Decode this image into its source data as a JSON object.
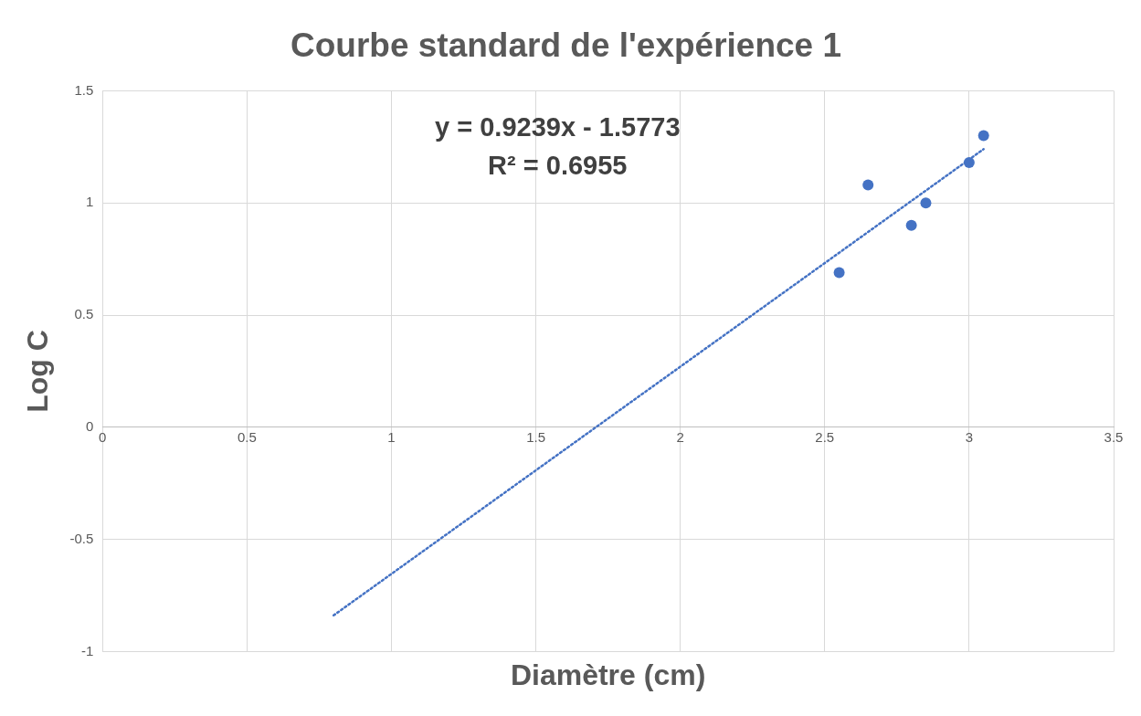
{
  "chart_data": {
    "type": "scatter",
    "title": "Courbe standard de l'expérience 1",
    "xlabel": "Diamètre (cm)",
    "ylabel": "Log C",
    "xlim": [
      0,
      3.5
    ],
    "xticks": [
      0,
      0.5,
      1,
      1.5,
      2,
      2.5,
      3,
      3.5
    ],
    "ylim": [
      -1,
      1.5
    ],
    "yticks": [
      -1,
      -0.5,
      0,
      0.5,
      1,
      1.5
    ],
    "grid": true,
    "marker": "circle",
    "annotations": [
      "y = 0.9239x - 1.5773",
      "R² = 0.6955"
    ],
    "series": [
      {
        "type": "scatter",
        "color": "#4472c4",
        "x": [
          2.55,
          2.65,
          2.8,
          2.85,
          3.0,
          3.05
        ],
        "values": [
          0.69,
          1.08,
          0.9,
          1.0,
          1.18,
          1.3
        ]
      },
      {
        "type": "line",
        "color": "#4472c4",
        "x": [
          0.8,
          3.05
        ],
        "values": [
          -0.838,
          1.24
        ],
        "line_style": "dotted",
        "marker": "none"
      }
    ]
  }
}
